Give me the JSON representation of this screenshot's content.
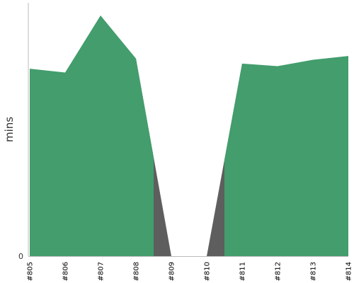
{
  "chart_data": {
    "type": "area",
    "categories": [
      "#805",
      "#806",
      "#807",
      "#808",
      "#809",
      "#810",
      "#811",
      "#812",
      "#813",
      "#814"
    ],
    "values": [
      74,
      72.5,
      95,
      78,
      0,
      0,
      76,
      75,
      77.5,
      79
    ],
    "ylabel": "mins",
    "y_tick_label": "0",
    "ylim": [
      0,
      100
    ],
    "colors": {
      "fill": "#439d6d",
      "gap": "#5e5e5e",
      "axis": "#bbbbbb"
    },
    "grid": false,
    "legend": "none"
  }
}
